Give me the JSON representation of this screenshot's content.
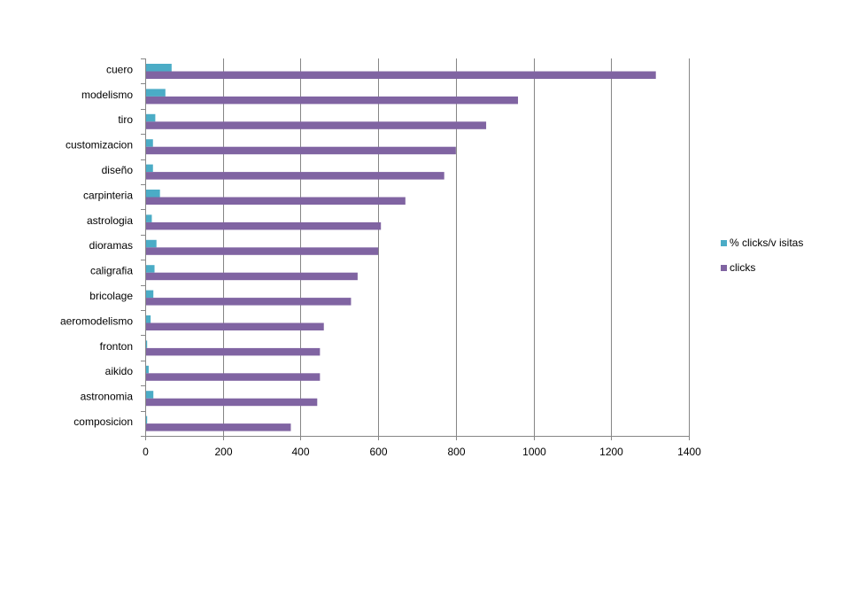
{
  "chart_data": {
    "type": "bar",
    "orientation": "horizontal",
    "title": "",
    "xlabel": "",
    "ylabel": "",
    "xlim": [
      0,
      1400
    ],
    "x_ticks": [
      0,
      200,
      400,
      600,
      800,
      1000,
      1200,
      1400
    ],
    "grid": "vertical",
    "legend_position": "right",
    "categories": [
      "cuero",
      "modelismo",
      "tiro",
      "customizacion",
      "diseño",
      "carpinteria",
      "astrologia",
      "dioramas",
      "caligrafia",
      "bricolage",
      "aeromodelismo",
      "fronton",
      "aikido",
      "astronomia",
      "composicion"
    ],
    "series": [
      {
        "name": "% clicks/v isitas",
        "color": "#4BACC6",
        "values": [
          68,
          52,
          26,
          20,
          20,
          38,
          17,
          29,
          24,
          21,
          14,
          5,
          9,
          21,
          5
        ]
      },
      {
        "name": "clicks",
        "color": "#8064A2",
        "values": [
          1315,
          960,
          878,
          800,
          770,
          670,
          607,
          600,
          547,
          530,
          460,
          450,
          450,
          443,
          375
        ]
      }
    ]
  }
}
